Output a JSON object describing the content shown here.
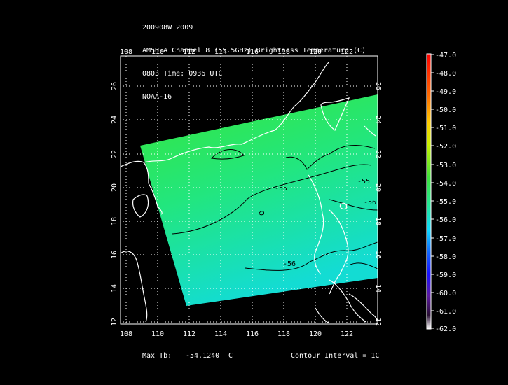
{
  "header": {
    "line1": "200908W 2009",
    "line2": "AMSU-A Channel 8 (55.5GHz) Brightness Temperature (C)",
    "line3": "0803 Time: 0936 UTC",
    "line4": "NOAA-16"
  },
  "map": {
    "lon_range": [
      107.5,
      123.8
    ],
    "lat_range": [
      11.8,
      27.7
    ],
    "lon_ticks": [
      "108",
      "110",
      "112",
      "114",
      "116",
      "118",
      "120",
      "122"
    ],
    "lat_ticks": [
      "12",
      "14",
      "16",
      "18",
      "20",
      "22",
      "24",
      "26"
    ],
    "contour_labels": [
      "-55",
      "-55",
      "-56",
      "-56"
    ],
    "swath_colors": {
      "north": "#37e63a",
      "mid": "#22e67e",
      "south": "#13dcd3"
    },
    "coast_color": "#ffffff",
    "contour_color": "#000000"
  },
  "colorbar": {
    "labels": [
      "-47.0",
      "-48.0",
      "-49.0",
      "-50.0",
      "-51.0",
      "-52.0",
      "-53.0",
      "-54.0",
      "-55.0",
      "-56.0",
      "-57.0",
      "-58.0",
      "-59.0",
      "-60.0",
      "-61.0",
      "-62.0"
    ]
  },
  "footer": {
    "max_label": "Max Tb:",
    "max_value": "-54.1240",
    "max_unit": "C",
    "contour_interval": "Contour Interval = 1C"
  }
}
